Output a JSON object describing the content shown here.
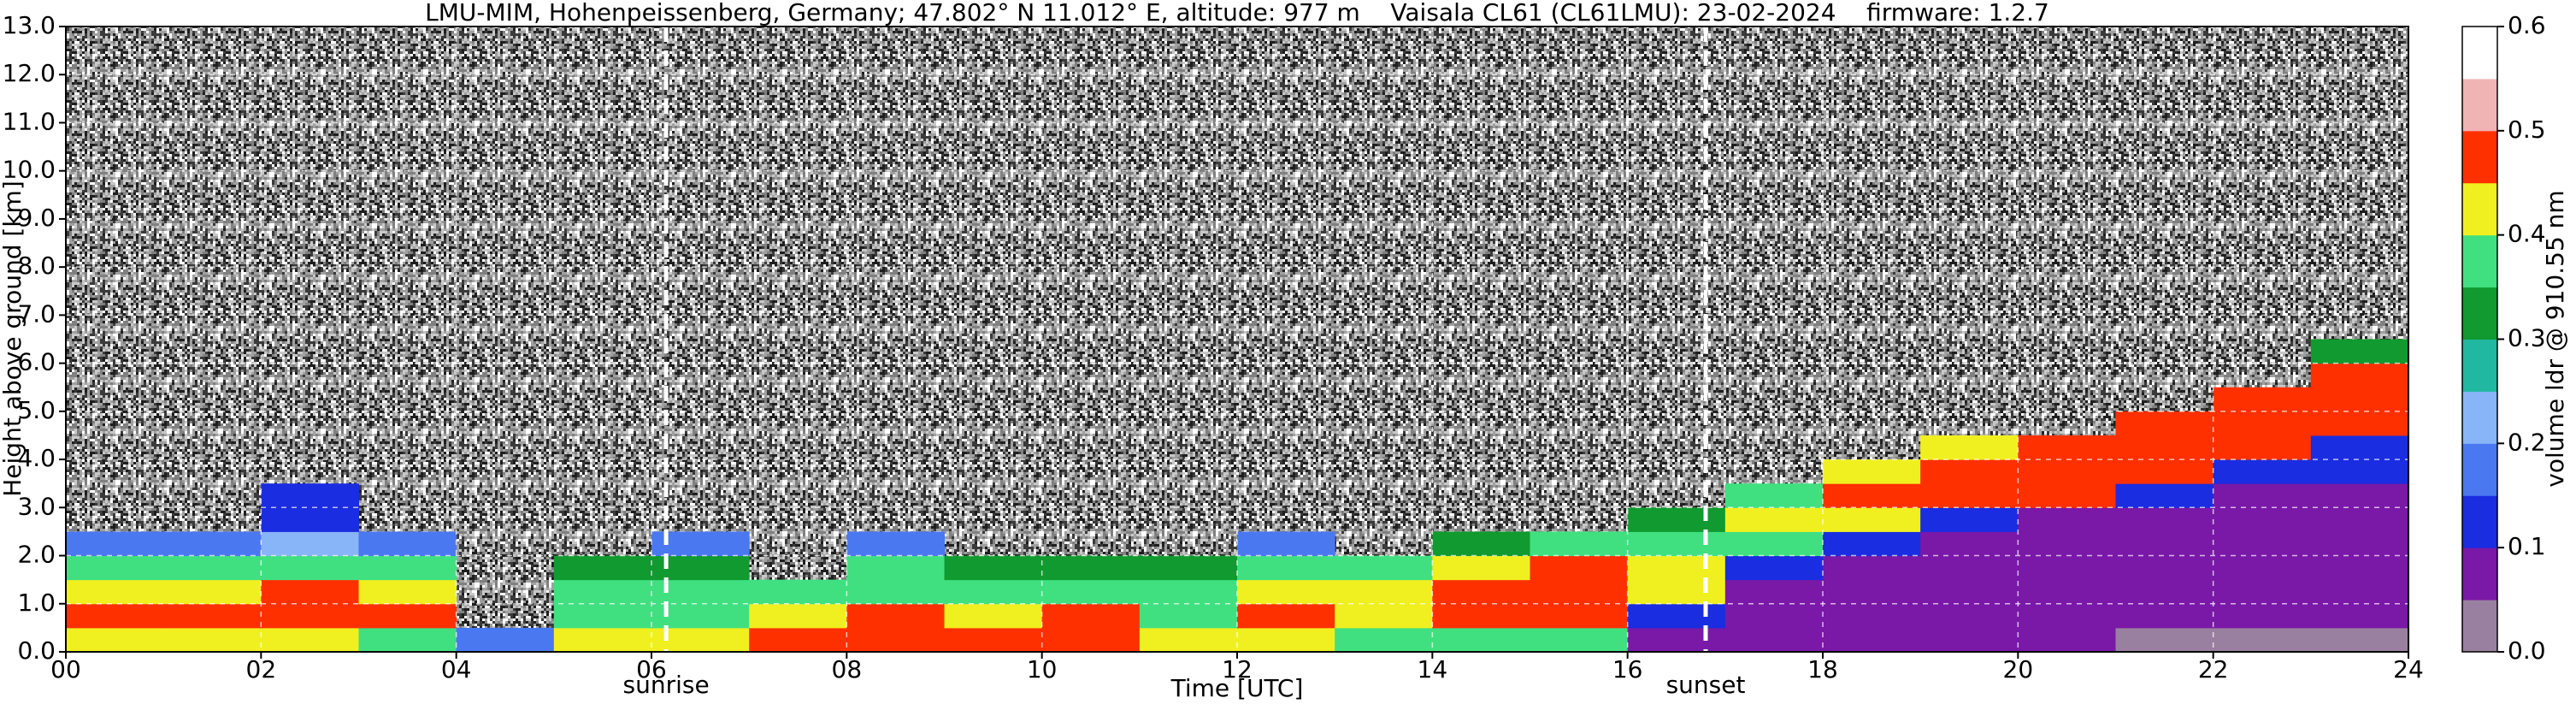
{
  "chart_data": {
    "type": "heatmap",
    "title": "LMU-MIM, Hohenpeissenberg, Germany; 47.802° N 11.012° E, altitude: 977 m    Vaisala CL61 (CL61LMU): 23-02-2024    firmware: 1.2.7",
    "x_label": "Time [UTC]",
    "y_label": "Height above ground [km]",
    "colorbar_label": "volume ldr @ 910.55 nm",
    "x": [
      0,
      1,
      2,
      3,
      4,
      5,
      6,
      7,
      8,
      9,
      10,
      11,
      12,
      13,
      14,
      15,
      16,
      17,
      18,
      19,
      20,
      21,
      22,
      23
    ],
    "y": [
      0,
      0.5,
      1,
      1.5,
      2,
      2.5,
      3,
      3.5,
      4,
      4.5,
      5,
      5.5,
      6,
      6.5
    ],
    "z": [
      [
        0.42,
        0.45,
        0.4,
        0.35,
        0.15,
        null,
        null,
        null,
        null,
        null,
        null,
        null,
        null,
        null
      ],
      [
        0.42,
        0.45,
        0.4,
        0.35,
        0.15,
        null,
        null,
        null,
        null,
        null,
        null,
        null,
        null,
        null
      ],
      [
        0.4,
        0.45,
        0.45,
        0.35,
        0.2,
        0.12,
        0.12,
        null,
        null,
        null,
        null,
        null,
        null,
        null
      ],
      [
        0.38,
        0.45,
        0.4,
        0.35,
        0.15,
        null,
        null,
        null,
        null,
        null,
        null,
        null,
        null,
        null
      ],
      [
        0.15,
        null,
        null,
        null,
        null,
        null,
        null,
        null,
        null,
        null,
        null,
        null,
        null,
        null
      ],
      [
        0.4,
        0.35,
        0.35,
        0.3,
        null,
        null,
        null,
        null,
        null,
        null,
        null,
        null,
        null,
        null
      ],
      [
        0.42,
        0.38,
        0.35,
        0.3,
        0.15,
        null,
        null,
        null,
        null,
        null,
        null,
        null,
        null,
        null
      ],
      [
        0.45,
        0.4,
        0.35,
        null,
        null,
        null,
        null,
        null,
        null,
        null,
        null,
        null,
        null,
        null
      ],
      [
        0.45,
        0.45,
        0.38,
        0.35,
        0.15,
        null,
        null,
        null,
        null,
        null,
        null,
        null,
        null,
        null
      ],
      [
        0.45,
        0.42,
        0.38,
        0.3,
        null,
        null,
        null,
        null,
        null,
        null,
        null,
        null,
        null,
        null
      ],
      [
        0.48,
        0.45,
        0.35,
        0.3,
        null,
        null,
        null,
        null,
        null,
        null,
        null,
        null,
        null,
        null
      ],
      [
        0.4,
        0.38,
        0.38,
        0.3,
        null,
        null,
        null,
        null,
        null,
        null,
        null,
        null,
        null,
        null
      ],
      [
        0.42,
        0.45,
        0.42,
        0.35,
        0.15,
        null,
        null,
        null,
        null,
        null,
        null,
        null,
        null,
        null
      ],
      [
        0.35,
        0.4,
        0.42,
        0.38,
        null,
        null,
        null,
        null,
        null,
        null,
        null,
        null,
        null,
        null
      ],
      [
        0.35,
        0.45,
        0.45,
        0.4,
        0.3,
        null,
        null,
        null,
        null,
        null,
        null,
        null,
        null,
        null
      ],
      [
        0.38,
        0.45,
        0.48,
        0.45,
        0.35,
        null,
        null,
        null,
        null,
        null,
        null,
        null,
        null,
        null
      ],
      [
        0.05,
        0.1,
        0.4,
        0.42,
        0.35,
        0.3,
        null,
        null,
        null,
        null,
        null,
        null,
        null,
        null
      ],
      [
        0.05,
        0.05,
        0.08,
        0.1,
        0.35,
        0.4,
        0.38,
        null,
        null,
        null,
        null,
        null,
        null,
        null
      ],
      [
        0.05,
        0.05,
        0.08,
        0.08,
        0.1,
        0.42,
        0.45,
        0.4,
        null,
        null,
        null,
        null,
        null,
        null
      ],
      [
        0.05,
        0.05,
        0.08,
        0.08,
        0.05,
        0.1,
        0.45,
        0.45,
        0.4,
        null,
        null,
        null,
        null,
        null
      ],
      [
        0.05,
        0.05,
        0.08,
        0.08,
        0.05,
        0.05,
        0.45,
        0.48,
        0.45,
        null,
        null,
        null,
        null,
        null
      ],
      [
        0.03,
        0.05,
        0.08,
        0.08,
        0.05,
        0.05,
        0.1,
        0.48,
        0.45,
        0.45,
        null,
        null,
        null,
        null
      ],
      [
        0.02,
        0.05,
        0.08,
        0.08,
        0.05,
        0.05,
        0.08,
        0.1,
        0.45,
        0.48,
        0.48,
        null,
        null,
        null
      ],
      [
        0.02,
        0.05,
        0.08,
        0.08,
        0.05,
        0.05,
        0.08,
        0.1,
        0.1,
        0.45,
        0.48,
        0.48,
        0.3,
        null
      ]
    ],
    "xlim": [
      0,
      24
    ],
    "xticks": [
      {
        "value": 0,
        "label": "00"
      },
      {
        "value": 2,
        "label": "02"
      },
      {
        "value": 4,
        "label": "04"
      },
      {
        "value": 6,
        "label": "06"
      },
      {
        "value": 8,
        "label": "08"
      },
      {
        "value": 10,
        "label": "10"
      },
      {
        "value": 12,
        "label": "12"
      },
      {
        "value": 14,
        "label": "14"
      },
      {
        "value": 16,
        "label": "16"
      },
      {
        "value": 18,
        "label": "18"
      },
      {
        "value": 20,
        "label": "20"
      },
      {
        "value": 22,
        "label": "22"
      },
      {
        "value": 24,
        "label": "24"
      }
    ],
    "ylim": [
      0,
      13
    ],
    "yticks": [
      {
        "value": 0,
        "label": "0.0"
      },
      {
        "value": 1,
        "label": "1.0"
      },
      {
        "value": 2,
        "label": "2.0"
      },
      {
        "value": 3,
        "label": "3.0"
      },
      {
        "value": 4,
        "label": "4.0"
      },
      {
        "value": 5,
        "label": "5.0"
      },
      {
        "value": 6,
        "label": "6.0"
      },
      {
        "value": 7,
        "label": "7.0"
      },
      {
        "value": 8,
        "label": "8.0"
      },
      {
        "value": 9,
        "label": "9.0"
      },
      {
        "value": 10,
        "label": "10.0"
      },
      {
        "value": 11,
        "label": "11.0"
      },
      {
        "value": 12,
        "label": "12.0"
      },
      {
        "value": 13,
        "label": "13.0"
      }
    ],
    "clim": [
      0,
      0.6
    ],
    "cticks": [
      {
        "value": 0,
        "label": "0.0"
      },
      {
        "value": 0.1,
        "label": "0.1"
      },
      {
        "value": 0.2,
        "label": "0.2"
      },
      {
        "value": 0.3,
        "label": "0.3"
      },
      {
        "value": 0.4,
        "label": "0.4"
      },
      {
        "value": 0.5,
        "label": "0.5"
      },
      {
        "value": 0.6,
        "label": "0.6"
      }
    ],
    "colormap": [
      "#9a80a0",
      "#7a18a8",
      "#1a2de0",
      "#4a78f0",
      "#88b4f8",
      "#20b8a0",
      "#109a30",
      "#40e080",
      "#f0f020",
      "#ff3000",
      "#f0b4b4",
      "#ffffff"
    ],
    "grid": true,
    "annotations": [
      {
        "text": "sunrise",
        "x": 6.15
      },
      {
        "text": "sunset",
        "x": 16.8
      }
    ]
  }
}
